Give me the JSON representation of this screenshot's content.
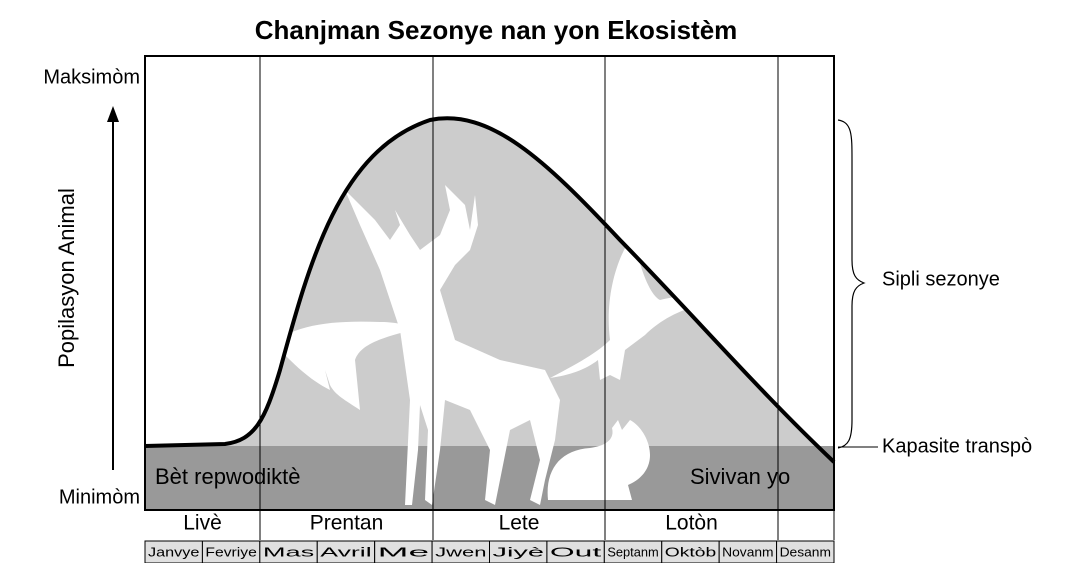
{
  "title": "Chanjman Sezonye nan yon Ekosistèm",
  "axis": {
    "label": "Popilasyon Animal",
    "max": "Maksimòm",
    "min": "Minimòm"
  },
  "annotations": {
    "surplus": "Sipli sezonye",
    "capacity": "Kapasite transpò"
  },
  "regions": {
    "breeding": "Bèt repwodiktè",
    "survivors": "Sivivan yo"
  },
  "seasons": [
    "Livè",
    "Prentan",
    "Lete",
    "Lotòn"
  ],
  "months": [
    "Janvye",
    "Fevriye",
    "Mas",
    "Avril",
    "Me",
    "Jwen",
    "Jiyè",
    "Out",
    "Septanm",
    "Oktòb",
    "Novanm",
    "Desanm"
  ]
}
